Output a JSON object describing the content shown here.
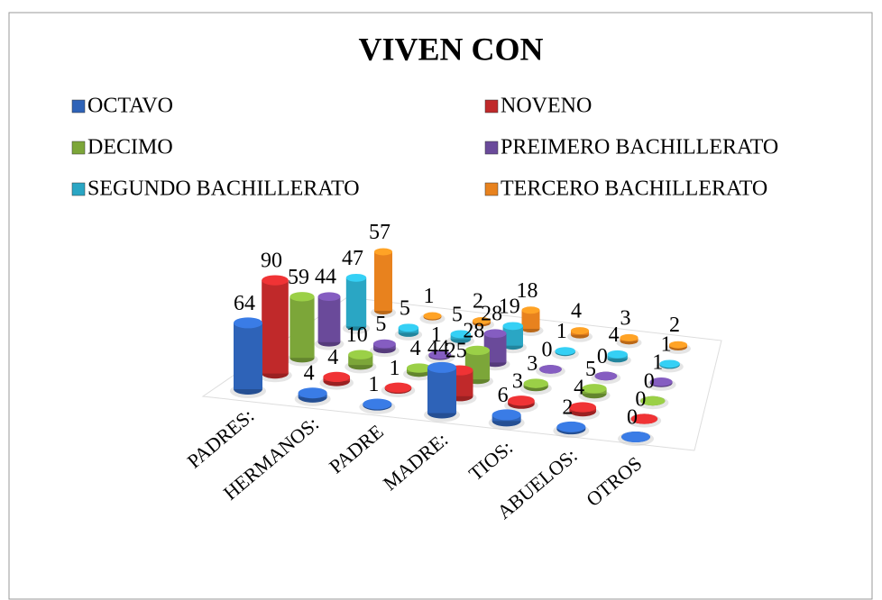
{
  "chart_data": {
    "type": "bar3d",
    "title": "VIVEN CON",
    "categories": [
      "PADRES:",
      "HERMANOS:",
      "PADRE",
      "MADRE:",
      "TIOS:",
      "ABUELOS:",
      "OTROS"
    ],
    "series": [
      {
        "name": "OCTAVO",
        "color": "#2e63b8",
        "values": [
          64,
          4,
          1,
          44,
          6,
          2,
          0
        ]
      },
      {
        "name": "NOVENO",
        "color": "#c0292a",
        "values": [
          90,
          4,
          1,
          25,
          3,
          4,
          0
        ]
      },
      {
        "name": "DECIMO",
        "color": "#7ca639",
        "values": [
          59,
          10,
          4,
          28,
          3,
          5,
          0
        ]
      },
      {
        "name": "PREIMERO BACHILLERATO",
        "color": "#6a4a9a",
        "values": [
          44,
          5,
          1,
          28,
          0,
          0,
          1
        ]
      },
      {
        "name": "SEGUNDO BACHILLERATO",
        "color": "#2aa6c4",
        "values": [
          47,
          5,
          5,
          19,
          1,
          4,
          1
        ]
      },
      {
        "name": "TERCERO BACHILLERATO",
        "color": "#e8821e",
        "values": [
          57,
          1,
          2,
          18,
          4,
          3,
          2
        ]
      }
    ]
  }
}
